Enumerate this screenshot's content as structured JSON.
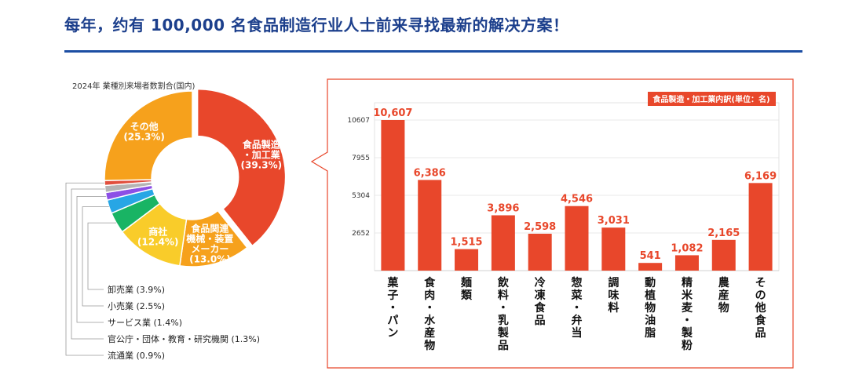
{
  "header": {
    "title": "每年，约有 100,000 名食品制造行业人士前来寻找最新的解决方案！"
  },
  "colors": {
    "accent": "#e8472b",
    "title": "#1c3f8c",
    "rule": "#1c4ea3",
    "food_manufacturing": "#e8472b",
    "food_machinery": "#f6a11c",
    "trading": "#f9cc2a",
    "wholesale": "#19b464",
    "retail": "#27a6e5",
    "service": "#8c4fe6",
    "government": "#b4b4b4",
    "distribution": "#e14f3d",
    "other": "#f6a11c"
  },
  "chart_data": [
    {
      "type": "pie",
      "style": "donut",
      "title": "2024年 業種別来場者数割合(国内)",
      "slices": [
        {
          "name": "食品製造・加工業",
          "label_lines": [
            "食品製造",
            "・加工業",
            "(39.3%)"
          ],
          "value": 39.3,
          "color": "#e8472b",
          "exploded": true
        },
        {
          "name": "食品関連機械・装置メーカー",
          "label_lines": [
            "食品関連",
            "機械・装置",
            "メーカー",
            "(13.0%)"
          ],
          "value": 13.0,
          "color": "#f6a11c"
        },
        {
          "name": "商社",
          "label_lines": [
            "商社",
            "(12.4%)"
          ],
          "value": 12.4,
          "color": "#f9cc2a"
        },
        {
          "name": "卸売業",
          "value": 3.9,
          "color": "#19b464"
        },
        {
          "name": "小売業",
          "value": 2.5,
          "color": "#27a6e5"
        },
        {
          "name": "サービス業",
          "value": 1.4,
          "color": "#8c4fe6"
        },
        {
          "name": "官公庁・団体・教育・研究機関",
          "value": 1.3,
          "color": "#b4b4b4"
        },
        {
          "name": "流通業",
          "value": 0.9,
          "color": "#e14f3d"
        },
        {
          "name": "その他",
          "label_lines": [
            "その他",
            "(25.3%)"
          ],
          "value": 25.3,
          "color": "#f6a11c"
        }
      ],
      "legend": [
        "卸売業 (3.9%)",
        "小売業 (2.5%)",
        "サービス業 (1.4%)",
        "官公庁・団体・教育・研究機関 (1.3%)",
        "流通業 (0.9%)"
      ]
    },
    {
      "type": "bar",
      "title": "食品製造・加工業内訳(単位：名)",
      "categories": [
        "菓子・パン",
        "食肉・水産物",
        "麺類",
        "飲料・乳製品",
        "冷凍食品",
        "惣菜・弁当",
        "調味料",
        "動植物油脂",
        "精米麦・製粉",
        "農産物",
        "その他食品"
      ],
      "values": [
        10607,
        6386,
        1515,
        3896,
        2598,
        4546,
        3031,
        541,
        1082,
        2165,
        6169
      ],
      "value_labels": [
        "10,607",
        "6,386",
        "1,515",
        "3,896",
        "2,598",
        "4,546",
        "3,031",
        "541",
        "1,082",
        "2,165",
        "6,169"
      ],
      "yticks": [
        2652,
        5304,
        7955,
        10607
      ],
      "ytick_labels": [
        "2652",
        "5304",
        "7955",
        "10607"
      ],
      "ylim": [
        0,
        10607
      ],
      "color": "#e8472b",
      "grid": true
    }
  ]
}
